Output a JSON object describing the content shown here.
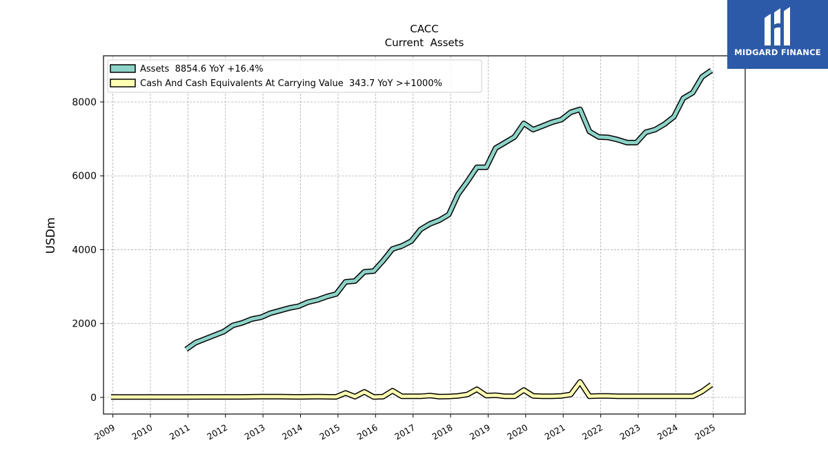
{
  "brand": {
    "name": "MIDGARD FINANCE",
    "color": "#2d5aa8"
  },
  "chart_data": {
    "type": "line",
    "title": "CACC",
    "subtitle": "Current  Assets",
    "ylabel": "USDm",
    "xlabel": "",
    "x_ticks": [
      "2009",
      "2010",
      "2011",
      "2012",
      "2013",
      "2014",
      "2015",
      "2016",
      "2017",
      "2018",
      "2019",
      "2020",
      "2021",
      "2022",
      "2023",
      "2024",
      "2025"
    ],
    "y_ticks": [
      0,
      2000,
      4000,
      6000,
      8000
    ],
    "xlim": [
      2008.75,
      2025.85
    ],
    "ylim": [
      -450,
      9250
    ],
    "grid": true,
    "legend_position": "top-left",
    "series": [
      {
        "name": "Assets",
        "legend_label": "Assets  8854.6 YoY +16.4%",
        "color": "#8dd3c7",
        "x": [
          2010.95,
          2011.2,
          2011.45,
          2011.7,
          2011.95,
          2012.2,
          2012.45,
          2012.7,
          2012.95,
          2013.2,
          2013.45,
          2013.7,
          2013.95,
          2014.2,
          2014.45,
          2014.7,
          2014.95,
          2015.2,
          2015.45,
          2015.7,
          2015.95,
          2016.2,
          2016.45,
          2016.7,
          2016.95,
          2017.2,
          2017.45,
          2017.7,
          2017.95,
          2018.2,
          2018.45,
          2018.7,
          2018.95,
          2019.2,
          2019.45,
          2019.7,
          2019.95,
          2020.2,
          2020.45,
          2020.7,
          2020.95,
          2021.2,
          2021.45,
          2021.7,
          2021.95,
          2022.2,
          2022.45,
          2022.7,
          2022.95,
          2023.2,
          2023.45,
          2023.7,
          2023.95,
          2024.2,
          2024.45,
          2024.7,
          2024.95
        ],
        "values": [
          1300,
          1480,
          1580,
          1680,
          1780,
          1950,
          2020,
          2120,
          2170,
          2280,
          2350,
          2420,
          2470,
          2580,
          2640,
          2730,
          2800,
          3130,
          3150,
          3400,
          3420,
          3700,
          4020,
          4100,
          4230,
          4550,
          4700,
          4800,
          4950,
          5500,
          5850,
          6230,
          6230,
          6750,
          6900,
          7050,
          7420,
          7250,
          7350,
          7450,
          7520,
          7720,
          7800,
          7200,
          7050,
          7040,
          6980,
          6900,
          6900,
          7180,
          7250,
          7400,
          7600,
          8100,
          8250,
          8680,
          8854.6
        ]
      },
      {
        "name": "Cash And Cash Equivalents At Carrying Value",
        "legend_label": "Cash And Cash Equivalents At Carrying Value  343.7 YoY >+1000%",
        "color": "#ffffb3",
        "x": [
          2008.95,
          2009.45,
          2009.95,
          2010.45,
          2010.95,
          2011.45,
          2011.95,
          2012.45,
          2012.95,
          2013.45,
          2013.95,
          2014.45,
          2014.95,
          2015.2,
          2015.45,
          2015.7,
          2015.95,
          2016.2,
          2016.45,
          2016.7,
          2016.95,
          2017.2,
          2017.45,
          2017.7,
          2017.95,
          2018.2,
          2018.45,
          2018.7,
          2018.95,
          2019.2,
          2019.45,
          2019.7,
          2019.95,
          2020.2,
          2020.45,
          2020.7,
          2020.95,
          2021.2,
          2021.45,
          2021.7,
          2021.95,
          2022.2,
          2022.45,
          2022.7,
          2022.95,
          2023.2,
          2023.45,
          2023.7,
          2023.95,
          2024.2,
          2024.45,
          2024.7,
          2024.95
        ],
        "values": [
          10,
          10,
          10,
          10,
          10,
          15,
          15,
          15,
          20,
          20,
          15,
          20,
          15,
          120,
          20,
          150,
          10,
          20,
          180,
          30,
          30,
          30,
          50,
          20,
          25,
          40,
          80,
          220,
          50,
          60,
          30,
          30,
          200,
          40,
          30,
          30,
          40,
          80,
          420,
          30,
          40,
          40,
          30,
          30,
          30,
          30,
          30,
          30,
          30,
          30,
          30,
          160,
          343.7
        ]
      }
    ]
  }
}
